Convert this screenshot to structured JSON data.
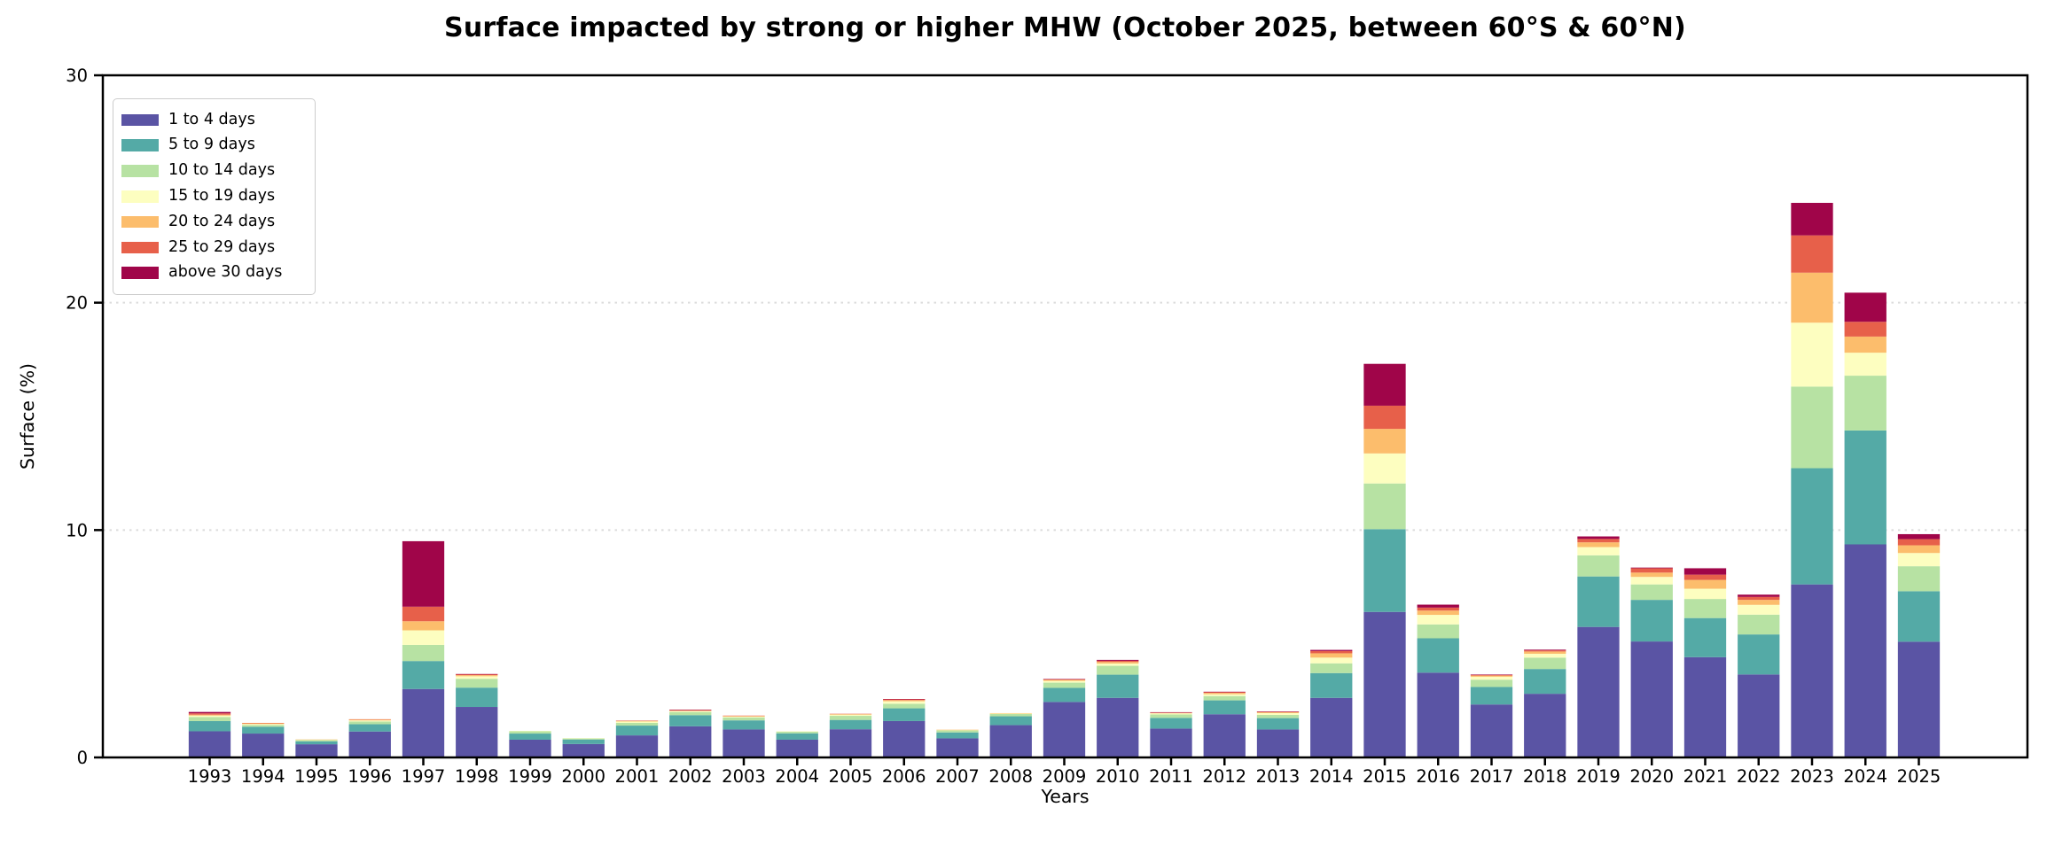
{
  "chart_data": {
    "type": "bar",
    "stacked": true,
    "title": "Surface impacted by strong or higher MHW (October 2025, between 60°S & 60°N)",
    "xlabel": "Years",
    "ylabel": "Surface (%)",
    "ylim": [
      0,
      30
    ],
    "yticks": [
      0,
      10,
      20,
      30
    ],
    "grid": "horizontal dotted lines at 10 and 20",
    "grid_color": "#dcdcdc",
    "legend_position": "upper left",
    "background_color": "#ffffff",
    "spine_color": "#000000",
    "categories": [
      "1993",
      "1994",
      "1995",
      "1996",
      "1997",
      "1998",
      "1999",
      "2000",
      "2001",
      "2002",
      "2003",
      "2004",
      "2005",
      "2006",
      "2007",
      "2008",
      "2009",
      "2010",
      "2011",
      "2012",
      "2013",
      "2014",
      "2015",
      "2016",
      "2017",
      "2018",
      "2019",
      "2020",
      "2021",
      "2022",
      "2023",
      "2024",
      "2025"
    ],
    "series": [
      {
        "name": "1 to 4 days",
        "color": "#5a54a4",
        "values": [
          1.15,
          1.05,
          0.58,
          1.14,
          3.01,
          2.22,
          0.78,
          0.59,
          0.97,
          1.37,
          1.23,
          0.78,
          1.24,
          1.6,
          0.84,
          1.42,
          2.44,
          2.62,
          1.27,
          1.9,
          1.23,
          2.62,
          6.4,
          3.73,
          2.33,
          2.8,
          5.74,
          5.1,
          4.41,
          3.65,
          7.61,
          9.37,
          5.09
        ]
      },
      {
        "name": "5 to 9 days",
        "color": "#54aaa6",
        "values": [
          0.45,
          0.3,
          0.13,
          0.32,
          1.23,
          0.85,
          0.27,
          0.2,
          0.43,
          0.49,
          0.4,
          0.28,
          0.41,
          0.56,
          0.26,
          0.39,
          0.62,
          1.02,
          0.47,
          0.61,
          0.5,
          1.09,
          3.64,
          1.51,
          0.77,
          1.09,
          2.22,
          1.83,
          1.72,
          1.76,
          5.11,
          5.01,
          2.22
        ]
      },
      {
        "name": "10 to 14 days",
        "color": "#b7e2a3",
        "values": [
          0.18,
          0.08,
          0.05,
          0.12,
          0.71,
          0.39,
          0.1,
          0.05,
          0.12,
          0.14,
          0.13,
          0.08,
          0.18,
          0.2,
          0.09,
          0.1,
          0.23,
          0.39,
          0.15,
          0.19,
          0.14,
          0.43,
          2.01,
          0.61,
          0.32,
          0.5,
          0.93,
          0.68,
          0.84,
          0.87,
          3.59,
          2.41,
          1.1
        ]
      },
      {
        "name": "15 to 19 days",
        "color": "#fdfec0",
        "values": [
          0.06,
          0.04,
          0.02,
          0.05,
          0.64,
          0.11,
          0.02,
          0.01,
          0.06,
          0.04,
          0.04,
          0.01,
          0.06,
          0.11,
          0.02,
          0.03,
          0.08,
          0.1,
          0.05,
          0.08,
          0.08,
          0.25,
          1.32,
          0.42,
          0.13,
          0.17,
          0.36,
          0.33,
          0.45,
          0.43,
          2.81,
          1.01,
          0.58
        ]
      },
      {
        "name": "20 to 24 days",
        "color": "#fcbd6c",
        "values": [
          0.04,
          0.03,
          0.01,
          0.04,
          0.4,
          0.05,
          0.0,
          0.0,
          0.03,
          0.02,
          0.03,
          0.0,
          0.02,
          0.05,
          0.01,
          0.01,
          0.04,
          0.07,
          0.02,
          0.06,
          0.04,
          0.19,
          1.08,
          0.19,
          0.05,
          0.1,
          0.21,
          0.19,
          0.39,
          0.22,
          2.2,
          0.71,
          0.34
        ]
      },
      {
        "name": "25 to 29 days",
        "color": "#e7604a",
        "values": [
          0.06,
          0.02,
          0.0,
          0.01,
          0.64,
          0.04,
          0.0,
          0.0,
          0.01,
          0.03,
          0.01,
          0.0,
          0.01,
          0.04,
          0.0,
          0.0,
          0.03,
          0.05,
          0.02,
          0.04,
          0.02,
          0.1,
          1.02,
          0.13,
          0.03,
          0.05,
          0.15,
          0.19,
          0.23,
          0.13,
          1.64,
          0.65,
          0.27
        ]
      },
      {
        "name": "above 30 days",
        "color": "#a00549",
        "values": [
          0.06,
          0.0,
          0.0,
          0.0,
          2.88,
          0.01,
          0.0,
          0.0,
          0.0,
          0.01,
          0.0,
          0.0,
          0.0,
          0.01,
          0.0,
          0.0,
          0.01,
          0.04,
          0.01,
          0.01,
          0.01,
          0.05,
          1.84,
          0.13,
          0.02,
          0.03,
          0.11,
          0.03,
          0.28,
          0.1,
          1.43,
          1.28,
          0.22
        ]
      }
    ]
  }
}
